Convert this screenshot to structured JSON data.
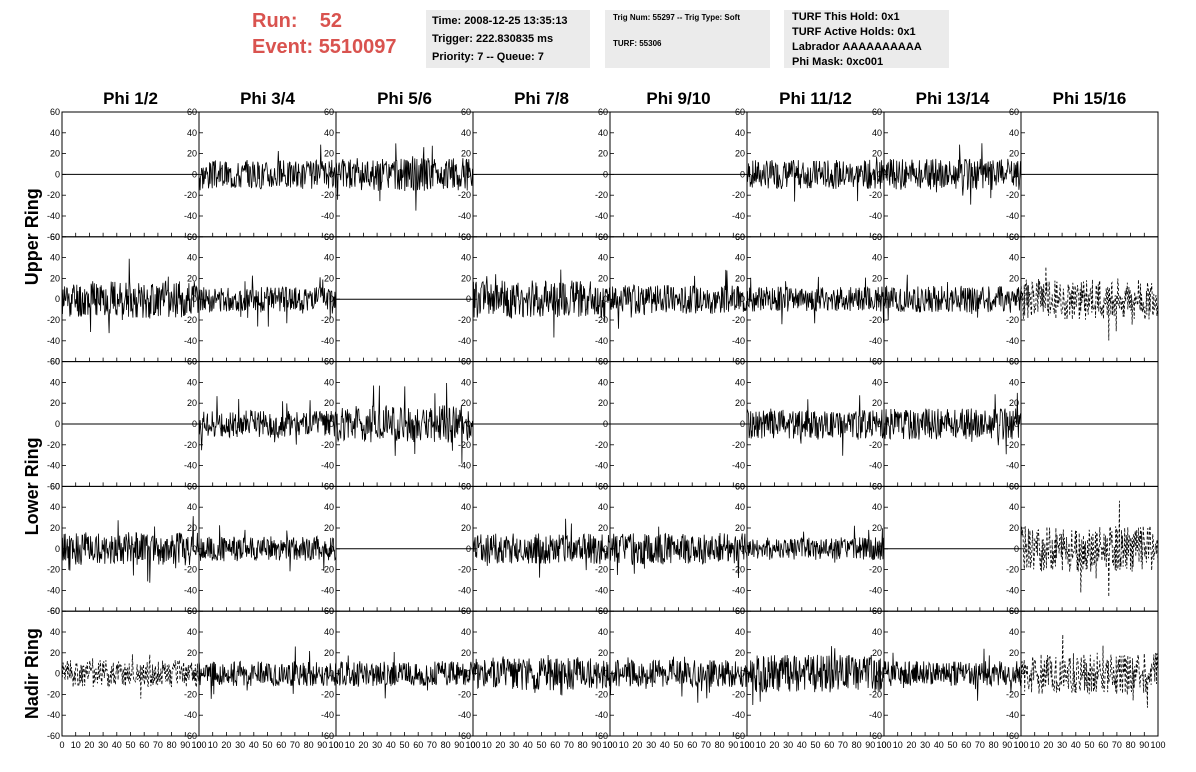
{
  "header": {
    "run_label": "Run:",
    "run_value": "52",
    "event_label": "Event:",
    "event_value": "5510097",
    "time": "Time: 2008-12-25 13:35:13",
    "trigger": "Trigger: 222.830835 ms",
    "priority": "Priority: 7 -- Queue: 7",
    "trig_num": "Trig Num: 55297 -- Trig Type: Soft",
    "turf": "TURF: 55306",
    "turf_this_hold": "TURF This Hold: 0x1",
    "turf_active_holds": "TURF Active Holds: 0x1",
    "labrador": "Labrador AAAAAAAAAA",
    "phi_mask": "Phi Mask: 0xc001"
  },
  "colors": {
    "header_text": "#d9534f",
    "info_bg": "#ebebeb",
    "trace": "#000000"
  },
  "chart_data": {
    "type": "line",
    "columns": [
      "Phi 1/2",
      "Phi 3/4",
      "Phi 5/6",
      "Phi 7/8",
      "Phi 9/10",
      "Phi 11/12",
      "Phi 13/14",
      "Phi 15/16"
    ],
    "rows": [
      "Upper Ring",
      "Lower Ring",
      "Nadir Ring"
    ],
    "xlim": [
      0,
      100
    ],
    "ylim": [
      -60,
      60
    ],
    "x_ticks": [
      "0",
      "10",
      "20",
      "30",
      "40",
      "50",
      "60",
      "70",
      "80",
      "90",
      "100"
    ],
    "y_ticks": [
      "60",
      "40",
      "20",
      "0",
      "-20",
      "-40",
      "-60"
    ],
    "grid": false,
    "panels": [
      {
        "row": 0,
        "col": 0,
        "style": "flat"
      },
      {
        "row": 0,
        "col": 1,
        "style": "solid",
        "amp": 14,
        "seed": 3
      },
      {
        "row": 0,
        "col": 2,
        "style": "solid",
        "amp": 16,
        "seed": 5
      },
      {
        "row": 0,
        "col": 3,
        "style": "flat"
      },
      {
        "row": 0,
        "col": 4,
        "style": "flat"
      },
      {
        "row": 0,
        "col": 5,
        "style": "solid",
        "amp": 14,
        "seed": 7
      },
      {
        "row": 0,
        "col": 6,
        "style": "solid",
        "amp": 15,
        "seed": 9
      },
      {
        "row": 0,
        "col": 7,
        "style": "flat"
      },
      {
        "row": 1,
        "col": 0,
        "style": "solid",
        "amp": 18,
        "seed": 11
      },
      {
        "row": 1,
        "col": 1,
        "style": "solid",
        "amp": 12,
        "seed": 13
      },
      {
        "row": 1,
        "col": 2,
        "style": "flat"
      },
      {
        "row": 1,
        "col": 3,
        "style": "solid",
        "amp": 18,
        "seed": 15
      },
      {
        "row": 1,
        "col": 4,
        "style": "solid",
        "amp": 14,
        "seed": 17
      },
      {
        "row": 1,
        "col": 5,
        "style": "solid",
        "amp": 12,
        "seed": 19
      },
      {
        "row": 1,
        "col": 6,
        "style": "solid",
        "amp": 13,
        "seed": 21
      },
      {
        "row": 1,
        "col": 7,
        "style": "dashed",
        "amp": 20,
        "seed": 23
      },
      {
        "row": 2,
        "col": 0,
        "style": "flat"
      },
      {
        "row": 2,
        "col": 1,
        "style": "solid",
        "amp": 13,
        "seed": 25
      },
      {
        "row": 2,
        "col": 2,
        "style": "solid",
        "amp": 18,
        "seed": 27
      },
      {
        "row": 2,
        "col": 3,
        "style": "flat"
      },
      {
        "row": 2,
        "col": 4,
        "style": "flat"
      },
      {
        "row": 2,
        "col": 5,
        "style": "solid",
        "amp": 14,
        "seed": 29
      },
      {
        "row": 2,
        "col": 6,
        "style": "solid",
        "amp": 15,
        "seed": 31
      },
      {
        "row": 2,
        "col": 7,
        "style": "flat"
      },
      {
        "row": 3,
        "col": 0,
        "style": "solid",
        "amp": 16,
        "seed": 33
      },
      {
        "row": 3,
        "col": 1,
        "style": "solid",
        "amp": 12,
        "seed": 35
      },
      {
        "row": 3,
        "col": 2,
        "style": "flat"
      },
      {
        "row": 3,
        "col": 3,
        "style": "solid",
        "amp": 15,
        "seed": 37
      },
      {
        "row": 3,
        "col": 4,
        "style": "solid",
        "amp": 15,
        "seed": 39
      },
      {
        "row": 3,
        "col": 5,
        "style": "solid",
        "amp": 11,
        "seed": 41
      },
      {
        "row": 3,
        "col": 6,
        "style": "flat"
      },
      {
        "row": 3,
        "col": 7,
        "style": "dashed",
        "amp": 22,
        "seed": 43
      },
      {
        "row": 4,
        "col": 0,
        "style": "dashed",
        "amp": 13,
        "seed": 45
      },
      {
        "row": 4,
        "col": 1,
        "style": "solid",
        "amp": 12,
        "seed": 47
      },
      {
        "row": 4,
        "col": 2,
        "style": "solid",
        "amp": 12,
        "seed": 49
      },
      {
        "row": 4,
        "col": 3,
        "style": "solid",
        "amp": 16,
        "seed": 51
      },
      {
        "row": 4,
        "col": 4,
        "style": "solid",
        "amp": 13,
        "seed": 53
      },
      {
        "row": 4,
        "col": 5,
        "style": "solid",
        "amp": 18,
        "seed": 55
      },
      {
        "row": 4,
        "col": 6,
        "style": "solid",
        "amp": 12,
        "seed": 57
      },
      {
        "row": 4,
        "col": 7,
        "style": "dashed",
        "amp": 20,
        "seed": 59
      }
    ]
  }
}
